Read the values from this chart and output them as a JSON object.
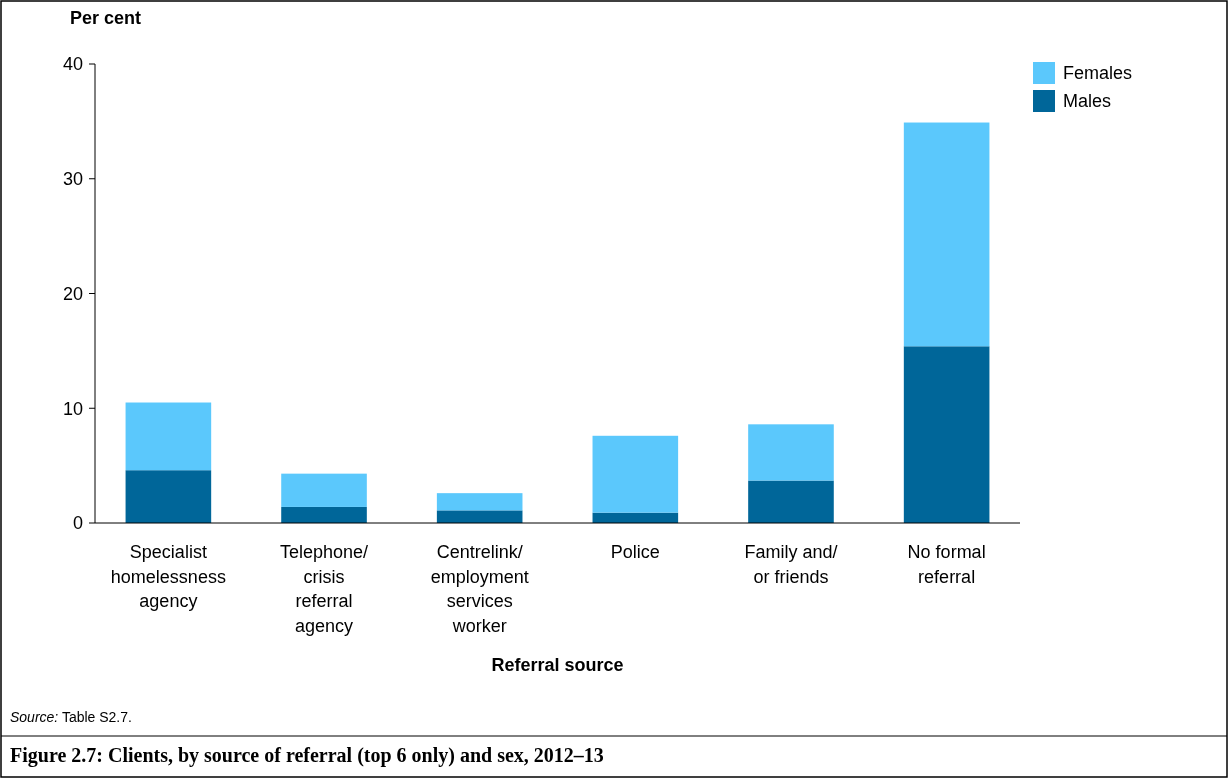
{
  "chart_data": {
    "type": "bar",
    "stacked": true,
    "title": "Figure 2.7: Clients, by source of referral (top 6 only) and sex, 2012–13",
    "xlabel": "Referral source",
    "ylabel": "Per cent",
    "categories": [
      "Specialist homelessness agency",
      "Telephone/ crisis referral agency",
      "Centrelink/ employment services worker",
      "Police",
      "Family and/ or friends",
      "No formal referral"
    ],
    "series": [
      {
        "name": "Males",
        "color": "#006699",
        "values": [
          4.6,
          1.4,
          1.1,
          0.9,
          3.7,
          15.4
        ]
      },
      {
        "name": "Females",
        "color": "#5bc8fc",
        "values": [
          5.9,
          2.9,
          1.5,
          6.7,
          4.9,
          19.5
        ]
      }
    ],
    "ylim": [
      0,
      40
    ],
    "yticks": [
      0,
      10,
      20,
      30,
      40
    ],
    "legend": "top right",
    "annotations": [
      "Source: Table S2.7."
    ]
  }
}
